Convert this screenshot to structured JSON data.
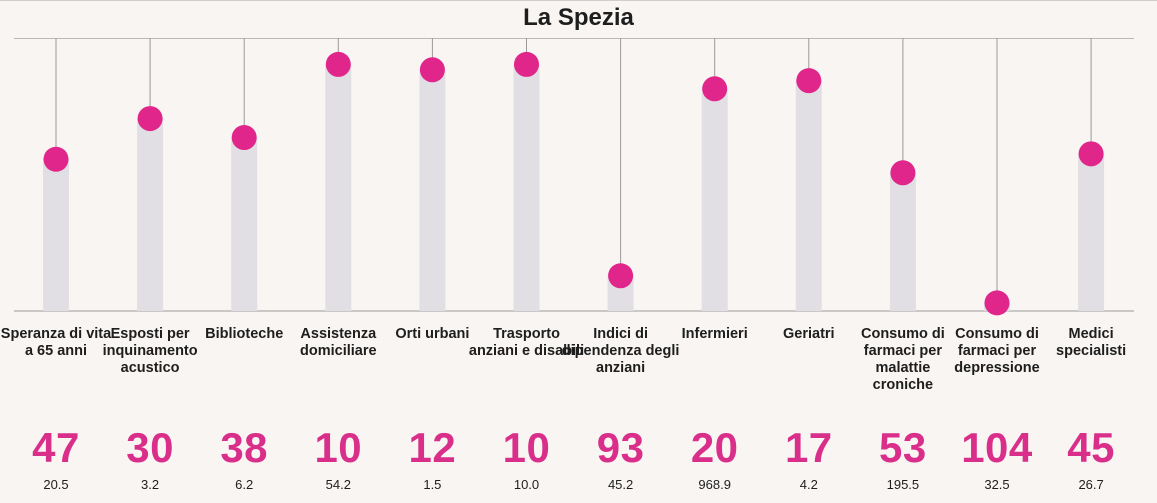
{
  "chart_data": {
    "type": "lollipop",
    "title": "La Spezia",
    "ylim": [
      0,
      100
    ],
    "colors": {
      "dot": "#e0268a",
      "bar": "#e1dfe3",
      "stem": "#9a9a9a",
      "rank_text": "#d92f8a"
    },
    "items": [
      {
        "category": "Speranza di vita a 65 anni",
        "rank": "47",
        "value": "20.5",
        "score": 56
      },
      {
        "category": "Esposti per inquinamento acustico",
        "rank": "30",
        "value": "3.2",
        "score": 71
      },
      {
        "category": "Biblioteche",
        "rank": "38",
        "value": "6.2",
        "score": 64
      },
      {
        "category": "Assistenza domiciliare",
        "rank": "10",
        "value": "54.2",
        "score": 91
      },
      {
        "category": "Orti urbani",
        "rank": "12",
        "value": "1.5",
        "score": 89
      },
      {
        "category": "Trasporto anziani e disabili",
        "rank": "10",
        "value": "10.0",
        "score": 91
      },
      {
        "category": "Indici di dipendenza degli anziani",
        "rank": "93",
        "value": "45.2",
        "score": 13
      },
      {
        "category": "Infermieri",
        "rank": "20",
        "value": "968.9",
        "score": 82
      },
      {
        "category": "Geriatri",
        "rank": "17",
        "value": "4.2",
        "score": 85
      },
      {
        "category": "Consumo di farmaci per malattie croniche",
        "rank": "53",
        "value": "195.5",
        "score": 51
      },
      {
        "category": "Consumo di farmaci per depressione",
        "rank": "104",
        "value": "32.5",
        "score": 3
      },
      {
        "category": "Medici specialisti",
        "rank": "45",
        "value": "26.7",
        "score": 58
      }
    ]
  }
}
